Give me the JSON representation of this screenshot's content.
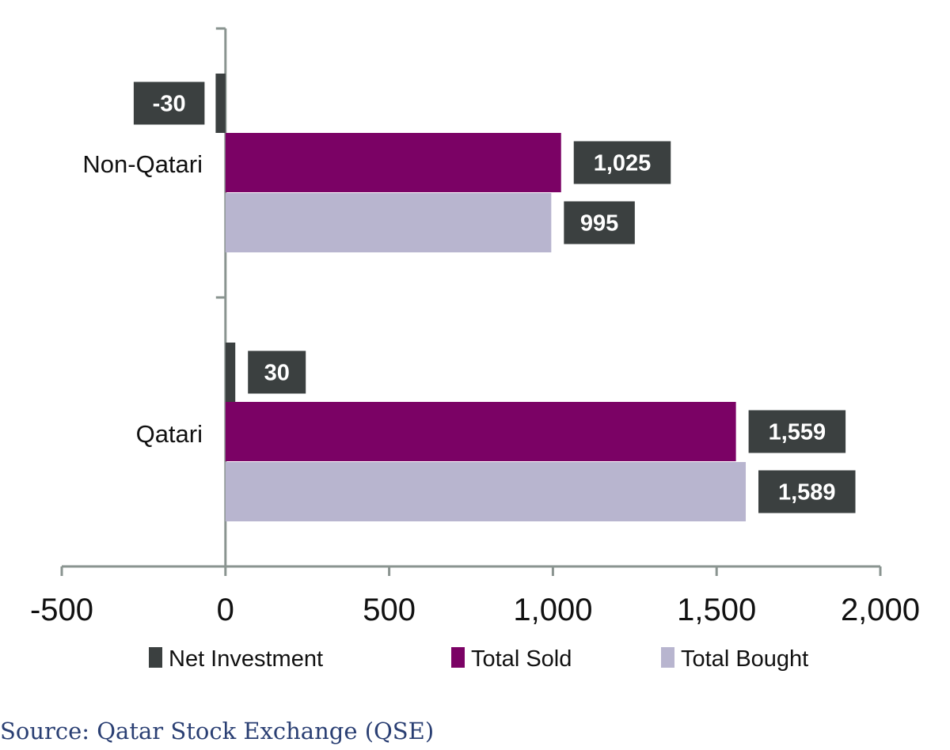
{
  "chart_data": {
    "type": "bar",
    "orientation": "horizontal",
    "title": "",
    "xlabel": "",
    "ylabel": "",
    "categories": [
      "Non-Qatari",
      "Qatari"
    ],
    "series": [
      {
        "name": "Net Investment",
        "color": "#3b4040",
        "values": [
          -30,
          30
        ],
        "labels": [
          "-30",
          "30"
        ]
      },
      {
        "name": "Total Sold",
        "color": "#7b0265",
        "values": [
          1025,
          1559
        ],
        "labels": [
          "1,025",
          "1,559"
        ]
      },
      {
        "name": "Total Bought",
        "color": "#b8b5cf",
        "values": [
          995,
          1589
        ],
        "labels": [
          "995",
          "1,589"
        ]
      }
    ],
    "xlim": [
      -500,
      2000
    ],
    "xticks": [
      -500,
      0,
      500,
      1000,
      1500,
      2000
    ],
    "xtick_labels": [
      "-500",
      "0",
      "500",
      "1,000",
      "1,500",
      "2,000"
    ],
    "data_label_color": "#3b4040",
    "legend_position": "bottom",
    "grid": false
  },
  "source": "Source: Qatar Stock Exchange (QSE)"
}
